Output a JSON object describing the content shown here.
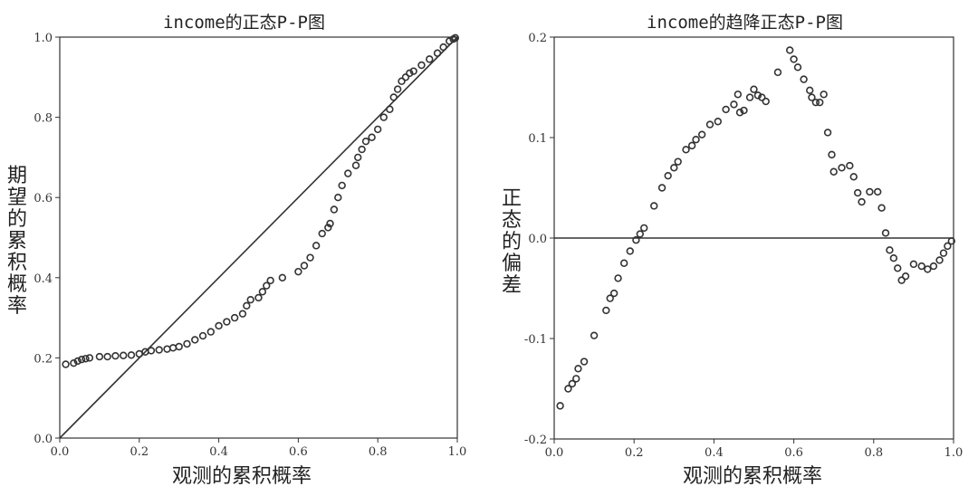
{
  "chart_data": [
    {
      "type": "scatter",
      "title": "income的正态P-P图",
      "xlabel": "观测的累积概率",
      "ylabel": "期望的累积概率",
      "xlim": [
        0.0,
        1.0
      ],
      "ylim": [
        0.0,
        1.0
      ],
      "xticks": [
        "0.0",
        "0.2",
        "0.4",
        "0.6",
        "0.8",
        "1.0"
      ],
      "yticks": [
        "0.0",
        "0.2",
        "0.4",
        "0.6",
        "0.8",
        "1.0"
      ],
      "reference_line": "diagonal",
      "grid": false,
      "legend": "none",
      "points": [
        [
          0.015,
          0.184
        ],
        [
          0.035,
          0.187
        ],
        [
          0.045,
          0.192
        ],
        [
          0.055,
          0.196
        ],
        [
          0.065,
          0.198
        ],
        [
          0.075,
          0.2
        ],
        [
          0.1,
          0.203
        ],
        [
          0.12,
          0.203
        ],
        [
          0.14,
          0.205
        ],
        [
          0.16,
          0.206
        ],
        [
          0.18,
          0.207
        ],
        [
          0.2,
          0.21
        ],
        [
          0.215,
          0.215
        ],
        [
          0.23,
          0.218
        ],
        [
          0.25,
          0.22
        ],
        [
          0.27,
          0.222
        ],
        [
          0.285,
          0.225
        ],
        [
          0.3,
          0.228
        ],
        [
          0.32,
          0.235
        ],
        [
          0.34,
          0.245
        ],
        [
          0.36,
          0.255
        ],
        [
          0.38,
          0.265
        ],
        [
          0.4,
          0.28
        ],
        [
          0.42,
          0.29
        ],
        [
          0.44,
          0.3
        ],
        [
          0.46,
          0.31
        ],
        [
          0.47,
          0.33
        ],
        [
          0.48,
          0.345
        ],
        [
          0.5,
          0.35
        ],
        [
          0.51,
          0.365
        ],
        [
          0.52,
          0.38
        ],
        [
          0.53,
          0.393
        ],
        [
          0.56,
          0.4
        ],
        [
          0.6,
          0.415
        ],
        [
          0.615,
          0.43
        ],
        [
          0.63,
          0.45
        ],
        [
          0.645,
          0.48
        ],
        [
          0.66,
          0.51
        ],
        [
          0.675,
          0.525
        ],
        [
          0.68,
          0.535
        ],
        [
          0.69,
          0.57
        ],
        [
          0.7,
          0.6
        ],
        [
          0.71,
          0.63
        ],
        [
          0.725,
          0.66
        ],
        [
          0.745,
          0.68
        ],
        [
          0.75,
          0.7
        ],
        [
          0.76,
          0.72
        ],
        [
          0.77,
          0.74
        ],
        [
          0.785,
          0.75
        ],
        [
          0.8,
          0.77
        ],
        [
          0.815,
          0.8
        ],
        [
          0.83,
          0.82
        ],
        [
          0.84,
          0.85
        ],
        [
          0.85,
          0.87
        ],
        [
          0.86,
          0.89
        ],
        [
          0.87,
          0.9
        ],
        [
          0.88,
          0.91
        ],
        [
          0.89,
          0.915
        ],
        [
          0.91,
          0.93
        ],
        [
          0.93,
          0.945
        ],
        [
          0.95,
          0.96
        ],
        [
          0.965,
          0.975
        ],
        [
          0.98,
          0.99
        ],
        [
          0.99,
          0.995
        ],
        [
          0.995,
          0.998
        ]
      ]
    },
    {
      "type": "scatter",
      "title": "income的趋降正态P-P图",
      "xlabel": "观测的累积概率",
      "ylabel": "正态的偏差",
      "xlim": [
        0.0,
        1.0
      ],
      "ylim": [
        -0.2,
        0.2
      ],
      "xticks": [
        "0.0",
        "0.2",
        "0.4",
        "0.6",
        "0.8",
        "1.0"
      ],
      "yticks": [
        "0.2",
        "0.1",
        "0.0",
        "-0.1",
        "-0.2"
      ],
      "reference_line": "zero",
      "grid": false,
      "legend": "none",
      "points": [
        [
          0.015,
          -0.167
        ],
        [
          0.035,
          -0.15
        ],
        [
          0.045,
          -0.145
        ],
        [
          0.055,
          -0.14
        ],
        [
          0.06,
          -0.13
        ],
        [
          0.075,
          -0.123
        ],
        [
          0.1,
          -0.097
        ],
        [
          0.13,
          -0.072
        ],
        [
          0.14,
          -0.06
        ],
        [
          0.15,
          -0.055
        ],
        [
          0.16,
          -0.04
        ],
        [
          0.175,
          -0.025
        ],
        [
          0.19,
          -0.013
        ],
        [
          0.205,
          -0.002
        ],
        [
          0.215,
          0.004
        ],
        [
          0.225,
          0.01
        ],
        [
          0.25,
          0.032
        ],
        [
          0.27,
          0.05
        ],
        [
          0.285,
          0.062
        ],
        [
          0.3,
          0.07
        ],
        [
          0.31,
          0.076
        ],
        [
          0.33,
          0.088
        ],
        [
          0.345,
          0.092
        ],
        [
          0.355,
          0.098
        ],
        [
          0.37,
          0.103
        ],
        [
          0.39,
          0.113
        ],
        [
          0.41,
          0.116
        ],
        [
          0.43,
          0.128
        ],
        [
          0.45,
          0.133
        ],
        [
          0.46,
          0.143
        ],
        [
          0.465,
          0.125
        ],
        [
          0.475,
          0.127
        ],
        [
          0.49,
          0.14
        ],
        [
          0.5,
          0.148
        ],
        [
          0.51,
          0.142
        ],
        [
          0.52,
          0.14
        ],
        [
          0.53,
          0.136
        ],
        [
          0.56,
          0.165
        ],
        [
          0.59,
          0.187
        ],
        [
          0.6,
          0.178
        ],
        [
          0.61,
          0.17
        ],
        [
          0.625,
          0.158
        ],
        [
          0.64,
          0.147
        ],
        [
          0.645,
          0.14
        ],
        [
          0.655,
          0.135
        ],
        [
          0.665,
          0.135
        ],
        [
          0.675,
          0.143
        ],
        [
          0.685,
          0.105
        ],
        [
          0.695,
          0.083
        ],
        [
          0.7,
          0.066
        ],
        [
          0.72,
          0.07
        ],
        [
          0.74,
          0.072
        ],
        [
          0.75,
          0.061
        ],
        [
          0.76,
          0.045
        ],
        [
          0.77,
          0.036
        ],
        [
          0.79,
          0.046
        ],
        [
          0.81,
          0.046
        ],
        [
          0.82,
          0.03
        ],
        [
          0.83,
          0.005
        ],
        [
          0.84,
          -0.012
        ],
        [
          0.85,
          -0.02
        ],
        [
          0.86,
          -0.03
        ],
        [
          0.87,
          -0.042
        ],
        [
          0.88,
          -0.038
        ],
        [
          0.9,
          -0.026
        ],
        [
          0.92,
          -0.028
        ],
        [
          0.935,
          -0.031
        ],
        [
          0.95,
          -0.028
        ],
        [
          0.965,
          -0.022
        ],
        [
          0.975,
          -0.015
        ],
        [
          0.985,
          -0.008
        ],
        [
          0.995,
          -0.003
        ]
      ]
    }
  ]
}
